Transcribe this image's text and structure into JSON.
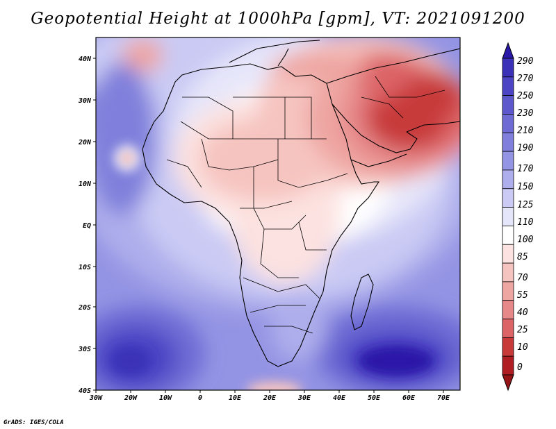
{
  "title": "Geopotential Height at 1000hPa [gpm], VT: 2021091200",
  "credit": "GrADS: IGES/COLA",
  "map": {
    "region": "Africa and Middle East",
    "variable": "Geopotential Height",
    "level": "1000hPa",
    "units": "gpm",
    "valid_time": "2021091200",
    "lon_labels": [
      "30W",
      "20W",
      "10W",
      "0",
      "10E",
      "20E",
      "30E",
      "40E",
      "50E",
      "60E",
      "70E"
    ],
    "lat_labels": [
      "40N",
      "30N",
      "20N",
      "10N",
      "EQ",
      "10S",
      "20S",
      "30S",
      "40S"
    ]
  },
  "colorbar": {
    "labels": [
      "290",
      "270",
      "250",
      "230",
      "210",
      "190",
      "170",
      "150",
      "125",
      "110",
      "100",
      "85",
      "70",
      "55",
      "40",
      "25",
      "10",
      "0"
    ],
    "colors": [
      "#2a18a8",
      "#3b30b8",
      "#4c44c4",
      "#5d58cc",
      "#6e6cd4",
      "#8080dc",
      "#9494e4",
      "#aeaeec",
      "#cacaf4",
      "#e6e6fa",
      "#ffffff",
      "#fce2e0",
      "#f6c4c0",
      "#eea6a2",
      "#e6888a",
      "#dc6466",
      "#c83a3a",
      "#b01e24",
      "#961418"
    ]
  }
}
